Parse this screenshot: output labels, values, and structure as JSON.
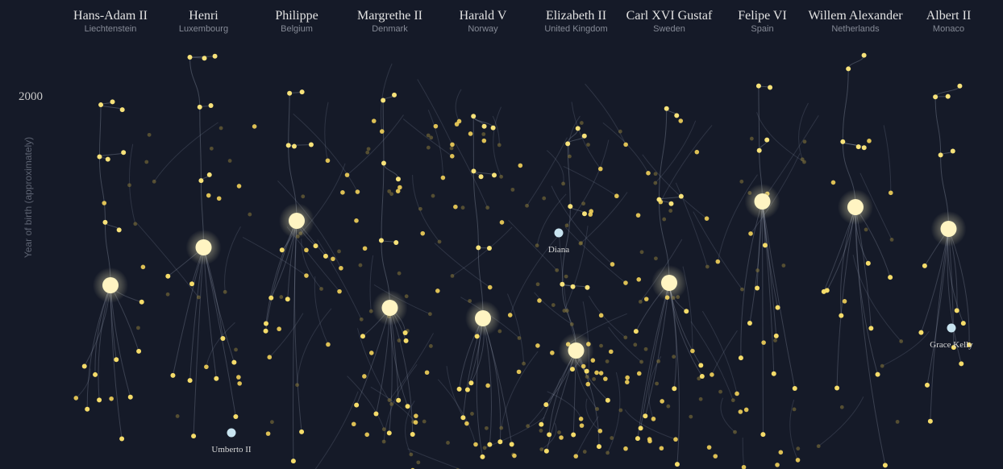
{
  "axis": {
    "label": "Year of birth (approximately)",
    "tick": "2000"
  },
  "monarchs": [
    {
      "name": "Hans-Adam II",
      "country": "Liechtenstein"
    },
    {
      "name": "Henri",
      "country": "Luxembourg"
    },
    {
      "name": "Philippe",
      "country": "Belgium"
    },
    {
      "name": "Margrethe II",
      "country": "Denmark"
    },
    {
      "name": "Harald V",
      "country": "Norway"
    },
    {
      "name": "Elizabeth II",
      "country": "United Kingdom"
    },
    {
      "name": "Carl XVI Gustaf",
      "country": "Sweden"
    },
    {
      "name": "Felipe VI",
      "country": "Spain"
    },
    {
      "name": "Willem Alexander",
      "country": "Netherlands"
    },
    {
      "name": "Albert II",
      "country": "Monaco"
    }
  ],
  "highlights": [
    {
      "label": "Diana"
    },
    {
      "label": "Umberto II"
    },
    {
      "label": "Grace Kelly"
    }
  ]
}
